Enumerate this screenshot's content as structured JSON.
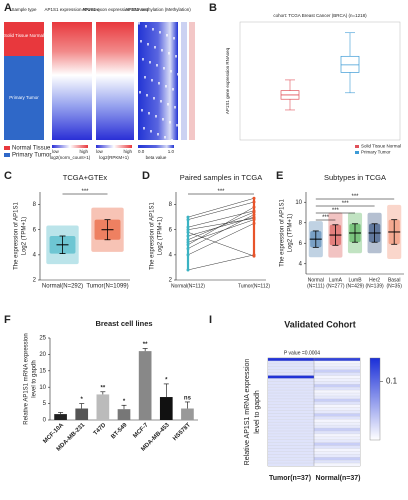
{
  "chart_data": [
    {
      "type": "heatmap_tracks",
      "panel": "A",
      "columns": [
        "Sample type",
        "AP1S1 expression RNAseq",
        "AP1S1 exon expression RNAseq",
        "AP1S1 methylation (Methylation)"
      ],
      "row_groups": [
        "Solid Tissue Normal",
        "Primary Tumor"
      ],
      "legend": [
        "Normal Tissue",
        "Primary Tumor"
      ],
      "scales": [
        {
          "low": "low",
          "high": "high",
          "unit": "log2(norm_count+1)"
        },
        {
          "low": "low",
          "high": "high",
          "unit": "log2(RPKM+1)"
        },
        {
          "low": "0.0",
          "high": "1.0",
          "unit": "beta value"
        }
      ]
    },
    {
      "type": "box",
      "panel": "B",
      "title": "cohort: TCGA Breast Cancer (BRCA) (n=1218)",
      "y_label": "AP1S1 gene expression RNAseq",
      "categories": [
        "Solid Tissue Normal",
        "Primary Tumor"
      ],
      "colors": [
        "#e0525a",
        "#3d9bd6"
      ],
      "boxes": [
        {
          "low": 2.8,
          "q1": 3.8,
          "median": 4.2,
          "q3": 4.6,
          "high": 5.6
        },
        {
          "low": 4.4,
          "q1": 6.3,
          "median": 7.0,
          "q3": 7.8,
          "high": 10.0
        }
      ],
      "ylim": [
        0,
        11
      ]
    },
    {
      "type": "mean_sd",
      "panel": "C",
      "title": "TCGA+GTEx",
      "y_label": [
        "The expression of AP1S1",
        "Log2 (TPM+1)"
      ],
      "categories": [
        "Normal(N=292)",
        "Tumor(N=1099)"
      ],
      "colors": [
        "#3bb3c3",
        "#e8542a"
      ],
      "values": [
        4.8,
        6.0
      ],
      "errors": [
        0.7,
        0.8
      ],
      "significance": [
        "***"
      ],
      "ylim": [
        2,
        9
      ],
      "yticks": [
        2,
        4,
        6,
        8
      ]
    },
    {
      "type": "paired",
      "panel": "D",
      "title": "Paired samples in TCGA",
      "y_label": [
        "The expression of AP1S1",
        "Log2 (TPM+1)"
      ],
      "categories": [
        "Normal(N=112)",
        "Tumor(N=112)"
      ],
      "colors": [
        "#3bb3c3",
        "#e8542a"
      ],
      "normal": [
        6.2,
        4.5,
        5.0,
        2.8,
        6.8,
        5.5,
        4.8,
        6.0,
        5.2,
        4.0,
        7.0,
        5.8
      ],
      "tumor": [
        7.5,
        7.2,
        6.8,
        4.0,
        8.2,
        7.0,
        7.8,
        6.9,
        7.4,
        6.5,
        8.5,
        3.9
      ],
      "significance": [
        "***"
      ],
      "ylim": [
        2,
        9
      ],
      "yticks": [
        2,
        4,
        6,
        8
      ]
    },
    {
      "type": "mean_sd",
      "panel": "E",
      "title": "Subtypes in TCGA",
      "y_label": [
        "The expression of AP1S1",
        "Log2 (TPM+1)"
      ],
      "categories": [
        "Normal",
        "LumA",
        "LumB",
        "Her2",
        "Basal"
      ],
      "counts": [
        "(N=111)",
        "(N=277)",
        "(N=429)",
        "(N=139)",
        "(N=35)"
      ],
      "colors": [
        "#4a7fb0",
        "#d9534f",
        "#4caf50",
        "#2c4a7a",
        "#f08a6a"
      ],
      "values": [
        6.4,
        6.8,
        7.0,
        7.0,
        7.1
      ],
      "errors": [
        0.8,
        1.0,
        0.9,
        0.9,
        1.2
      ],
      "significance": [
        "***",
        "***",
        "***",
        "***"
      ],
      "ylim": [
        3,
        11
      ],
      "yticks": [
        4,
        6,
        8,
        10
      ]
    },
    {
      "type": "bar",
      "panel": "F",
      "title": "Breast cell lines",
      "y_label": [
        "Relative AP1S1 mRNA expression",
        "level to gapdh"
      ],
      "categories": [
        "MCF-10A",
        "MDA-MB-231",
        "T47D",
        "BT-549",
        "MCF-7",
        "MDA-MB-453",
        "HS578T"
      ],
      "colors": [
        "#222222",
        "#555555",
        "#bbbbbb",
        "#777777",
        "#888888",
        "#111111",
        "#999999"
      ],
      "values": [
        1.8,
        3.5,
        7.8,
        3.3,
        21,
        7,
        3.5
      ],
      "errors": [
        0.5,
        1.5,
        0.8,
        1.2,
        0.8,
        4,
        2
      ],
      "annotations": [
        null,
        "*",
        "**",
        "*",
        "**",
        "*",
        "ns"
      ],
      "ylim": [
        0,
        25
      ],
      "yticks": [
        0,
        5,
        10,
        15,
        20,
        25
      ]
    },
    {
      "type": "heatmap_cohort",
      "panel": "I",
      "title": "Validated Cohort",
      "subtitle": "P value =0.0004",
      "y_label": [
        "Relative AP1S1 mRNA expression",
        "level to gapdh"
      ],
      "categories": [
        "Tumor(n=37)",
        "Normal(n=37)"
      ],
      "colorbar_ticks": [
        {
          "value": 0.1,
          "label": "0.1"
        }
      ],
      "colorbar_lim": [
        0,
        0.14
      ]
    }
  ]
}
